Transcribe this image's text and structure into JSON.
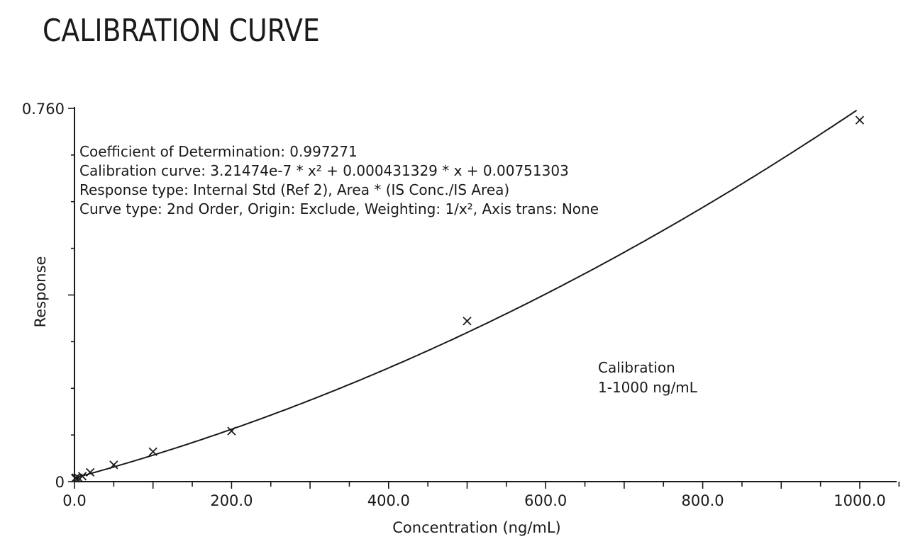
{
  "page": {
    "title": "CALIBRATION CURVE"
  },
  "chart_data": {
    "type": "scatter",
    "title": "CALIBRATION CURVE",
    "xlabel": "Concentration (ng/mL)",
    "ylabel": "Response",
    "xlim": [
      0,
      1000
    ],
    "ylim": [
      0,
      0.76
    ],
    "x_ticks": [
      0,
      200,
      400,
      600,
      800,
      1000
    ],
    "x_tick_labels": [
      "0.0",
      "200.0",
      "400.0",
      "600.0",
      "800.0",
      "1000.0"
    ],
    "y_tick_labels": [
      "0",
      "0.760"
    ],
    "grid": false,
    "annotations": [
      "Coefficient of Determination: 0.997271",
      "Calibration curve: 3.21474e-7 * x² + 0.000431329 * x + 0.00751303",
      "Response type: Internal Std (Ref 2), Area * (IS Conc./IS Area)",
      "Curve type: 2nd Order, Origin: Exclude, Weighting: 1/x², Axis trans: None"
    ],
    "label": [
      "Calibration",
      "1-1000 ng/mL"
    ],
    "fit": {
      "a": 3.21474e-07,
      "b": 0.000431329,
      "c": 0.00751303
    },
    "series": [
      {
        "points": [
          {
            "x": 1,
            "y": 0.007
          },
          {
            "x": 2,
            "y": 0.008
          },
          {
            "x": 5,
            "y": 0.008
          },
          {
            "x": 10,
            "y": 0.011
          },
          {
            "x": 20,
            "y": 0.019
          },
          {
            "x": 50,
            "y": 0.034
          },
          {
            "x": 100,
            "y": 0.061
          },
          {
            "x": 200,
            "y": 0.103
          },
          {
            "x": 500,
            "y": 0.327
          },
          {
            "x": 1000,
            "y": 0.736
          }
        ]
      }
    ]
  }
}
